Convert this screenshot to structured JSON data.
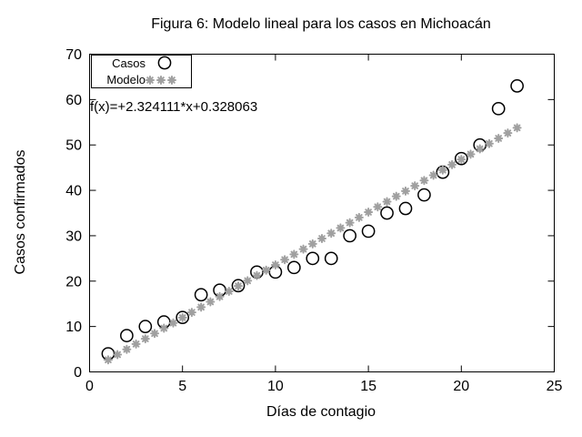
{
  "chart_data": {
    "type": "scatter",
    "title": "Figura 6: Modelo lineal para los casos en Michoacán",
    "xlabel": "Días de contagio",
    "ylabel": "Casos confirmados",
    "xlim": [
      0,
      25
    ],
    "ylim": [
      0,
      70
    ],
    "xticks": [
      0,
      5,
      10,
      15,
      20,
      25
    ],
    "yticks": [
      0,
      10,
      20,
      30,
      40,
      50,
      60,
      70
    ],
    "grid": false,
    "legend_position": "top-left",
    "annotation": "f(x)=+2.324111*x+0.328063",
    "series": [
      {
        "name": "Casos",
        "marker": "open-circle",
        "color": "#000000",
        "x": [
          1,
          2,
          3,
          4,
          5,
          6,
          7,
          8,
          9,
          10,
          11,
          12,
          13,
          14,
          15,
          16,
          17,
          18,
          19,
          20,
          21,
          22,
          23
        ],
        "y": [
          4,
          8,
          10,
          11,
          12,
          17,
          18,
          19,
          22,
          22,
          23,
          25,
          25,
          30,
          31,
          35,
          36,
          39,
          44,
          47,
          50,
          58,
          63
        ]
      },
      {
        "name": "Modelo",
        "marker": "asterisk",
        "color": "#a0a0a0",
        "model": {
          "slope": 2.324111,
          "intercept": 0.328063
        },
        "x_start": 1,
        "x_end": 23,
        "x_step": 0.5
      }
    ]
  }
}
